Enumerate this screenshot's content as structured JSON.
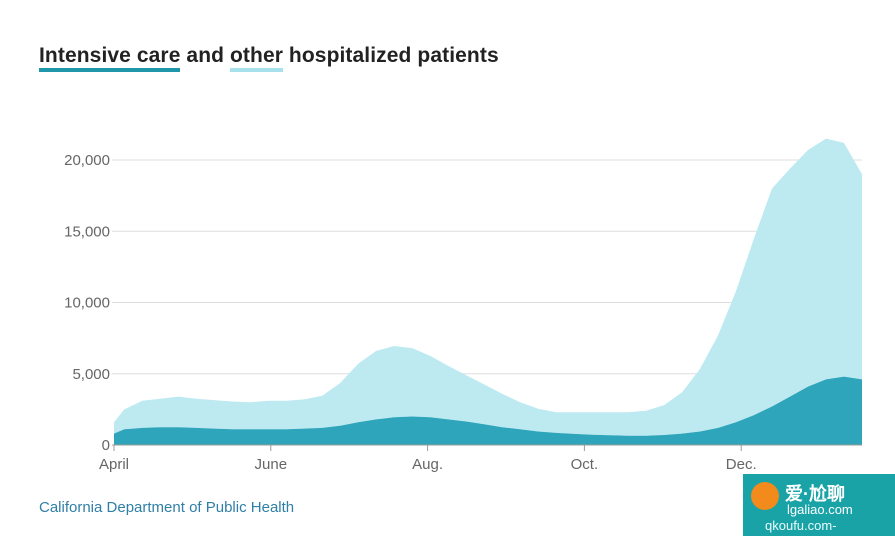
{
  "title": {
    "part1": "Intensive care",
    "part2": " and ",
    "part3": "other",
    "part4": " hospitalized patients"
  },
  "source": "California Department of Public Health",
  "colors": {
    "icu": "#2ea5bb",
    "other": "#bde9f1",
    "grid": "#dedede",
    "axis": "#9a9a9a",
    "tick": "#666666"
  },
  "watermark": {
    "line1": "爱·尬聊",
    "line2": "lgaliao.com",
    "line3": "qkoufu.com-"
  },
  "chart_data": {
    "type": "area",
    "x_axis": "date",
    "xlim": [
      "2020-04-01",
      "2021-01-17"
    ],
    "ylim": [
      0,
      22000
    ],
    "yticks": [
      0,
      5000,
      10000,
      15000,
      20000
    ],
    "ytick_labels": [
      "0",
      "5,000",
      "10,000",
      "15,000",
      "20,000"
    ],
    "xticks": [
      "2020-04-01",
      "2020-06-01",
      "2020-08-01",
      "2020-10-01",
      "2020-12-01"
    ],
    "xtick_labels": [
      "April",
      "June",
      "Aug.",
      "Oct.",
      "Dec."
    ],
    "grid": true,
    "stacked": true,
    "x": [
      "2020-03-29",
      "2020-04-05",
      "2020-04-12",
      "2020-04-19",
      "2020-04-26",
      "2020-05-03",
      "2020-05-10",
      "2020-05-17",
      "2020-05-24",
      "2020-05-31",
      "2020-06-07",
      "2020-06-14",
      "2020-06-21",
      "2020-06-28",
      "2020-07-05",
      "2020-07-12",
      "2020-07-19",
      "2020-07-26",
      "2020-08-02",
      "2020-08-09",
      "2020-08-16",
      "2020-08-23",
      "2020-08-30",
      "2020-09-06",
      "2020-09-13",
      "2020-09-20",
      "2020-09-27",
      "2020-10-04",
      "2020-10-11",
      "2020-10-18",
      "2020-10-25",
      "2020-11-01",
      "2020-11-08",
      "2020-11-15",
      "2020-11-22",
      "2020-11-29",
      "2020-12-06",
      "2020-12-13",
      "2020-12-20",
      "2020-12-27",
      "2021-01-03",
      "2021-01-10",
      "2021-01-17"
    ],
    "series": [
      {
        "values": [
          800,
          1100,
          1200,
          1250,
          1250,
          1200,
          1150,
          1100,
          1100,
          1100,
          1100,
          1150,
          1200,
          1350,
          1600,
          1800,
          1950,
          2000,
          1950,
          1800,
          1650,
          1450,
          1250,
          1100,
          950,
          850,
          780,
          720,
          680,
          650,
          650,
          700,
          800,
          950,
          1200,
          1600,
          2100,
          2700,
          3400,
          4100,
          4600,
          4800,
          4600
        ]
      },
      {
        "values": [
          800,
          1400,
          1900,
          2000,
          2150,
          2050,
          2000,
          1950,
          1900,
          2000,
          2000,
          2050,
          2250,
          3000,
          4100,
          4800,
          5000,
          4800,
          4300,
          3750,
          3250,
          2800,
          2350,
          1900,
          1600,
          1450,
          1520,
          1580,
          1620,
          1650,
          1750,
          2100,
          2900,
          4400,
          6500,
          9200,
          12400,
          15300,
          16000,
          16600,
          16900,
          16400,
          14400
        ]
      }
    ]
  }
}
